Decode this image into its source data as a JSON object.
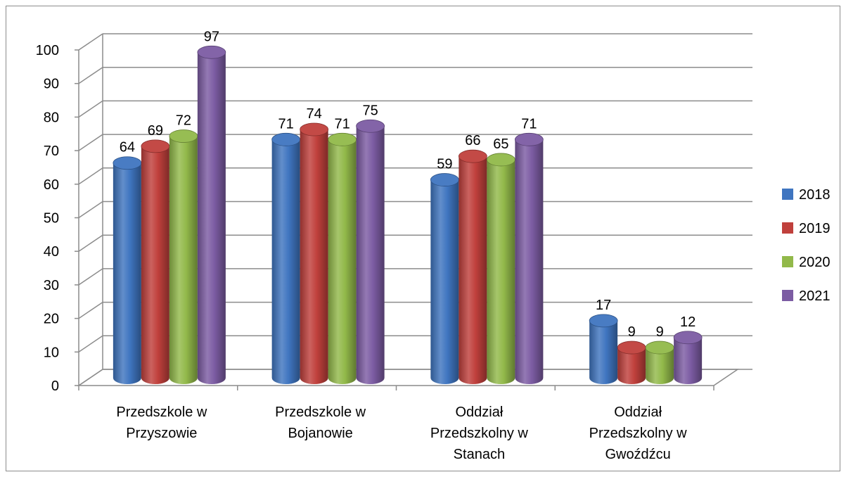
{
  "chart_data": {
    "type": "bar",
    "title": "",
    "xlabel": "",
    "ylabel": "",
    "ylim": [
      0,
      100
    ],
    "ytick_step": 10,
    "grid": true,
    "style": "3d-cylinder",
    "legend_position": "right",
    "categories": [
      [
        "Przedszkole w",
        "Przyszowie"
      ],
      [
        "Przedszkole w",
        "Bojanowie"
      ],
      [
        "Oddział",
        "Przedszkolny w",
        "Stanach"
      ],
      [
        "Oddział",
        "Przedszkolny w",
        "Gwoźdźcu"
      ]
    ],
    "series": [
      {
        "name": "2018",
        "color": "#3f75c0",
        "values": [
          64,
          71,
          59,
          17
        ]
      },
      {
        "name": "2019",
        "color": "#c0403c",
        "values": [
          69,
          74,
          66,
          9
        ]
      },
      {
        "name": "2020",
        "color": "#92b94a",
        "values": [
          72,
          71,
          65,
          9
        ]
      },
      {
        "name": "2021",
        "color": "#7c5ca3",
        "values": [
          97,
          75,
          71,
          12
        ]
      }
    ]
  }
}
